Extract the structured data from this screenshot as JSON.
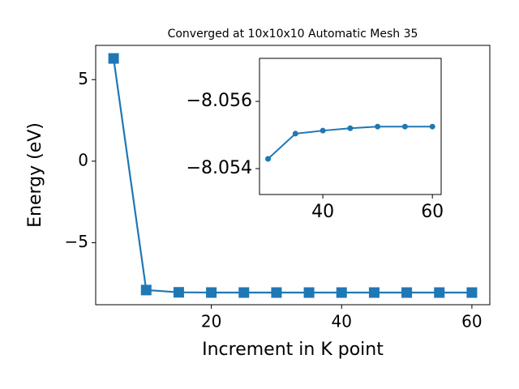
{
  "chart_data": [
    {
      "type": "line",
      "title": "Converged at 10x10x10 Automatic Mesh 35",
      "x_label": "Increment in K point",
      "y_label": "Energy (eV)",
      "x": [
        5,
        10,
        15,
        20,
        25,
        30,
        35,
        40,
        45,
        50,
        55,
        60
      ],
      "series": [
        {
          "color": "#1f77b4",
          "marker": "square",
          "values": [
            6.3,
            -7.9,
            -8.04,
            -8.053,
            -8.054,
            -8.05429,
            -8.05504,
            -8.05513,
            -8.0552,
            -8.05525,
            -8.05525,
            -8.05525
          ]
        }
      ],
      "xlim": [
        2.25,
        62.75
      ],
      "ylim": [
        -8.8,
        7.1
      ],
      "xticks": [
        20,
        40,
        60
      ],
      "yticks": [
        5,
        0,
        {
          "value": -5,
          "label": "−5"
        }
      ]
    },
    {
      "type": "line",
      "x": [
        30,
        35,
        40,
        45,
        50,
        55,
        60
      ],
      "series": [
        {
          "color": "#1f77b4",
          "marker": "circle",
          "values": [
            -8.05429,
            -8.05504,
            -8.05513,
            -8.0552,
            -8.05525,
            -8.05525,
            -8.05525
          ]
        }
      ],
      "xlim": [
        28.44,
        61.6
      ],
      "ylim": [
        -8.05323,
        -8.05728
      ],
      "xticks": [
        40,
        60
      ],
      "yticks": [
        {
          "value": -8.056,
          "label": "−8.056"
        },
        {
          "value": -8.054,
          "label": "−8.054"
        }
      ]
    }
  ]
}
